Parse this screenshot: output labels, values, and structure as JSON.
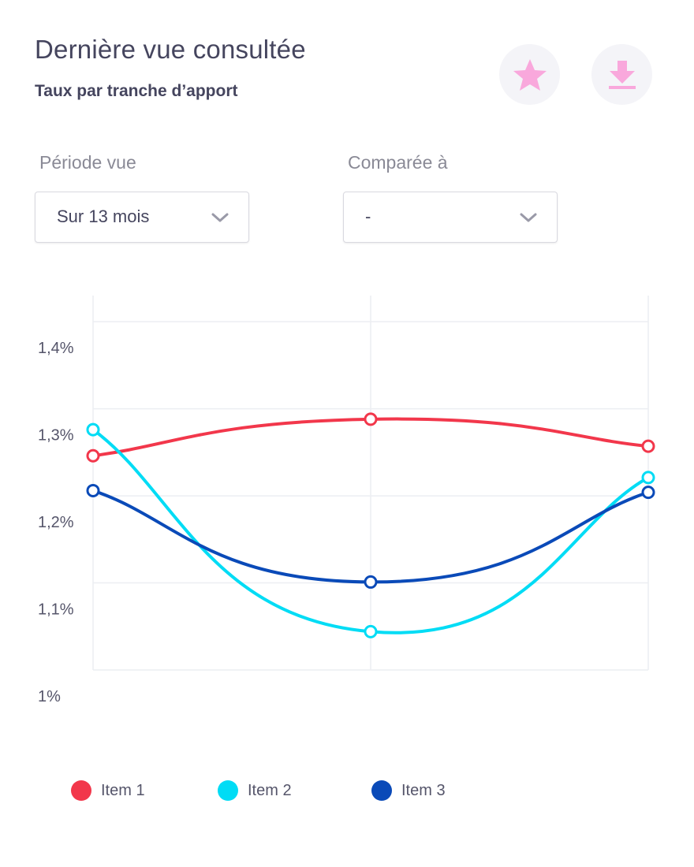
{
  "header": {
    "title": "Dernière vue consultée",
    "subtitle": "Taux par tranche d’apport",
    "favorite_icon": "star-icon",
    "download_icon": "download-icon"
  },
  "filters": {
    "period": {
      "label": "Période vue",
      "value": "Sur 13 mois"
    },
    "compare": {
      "label": "Comparée à",
      "value": "-"
    }
  },
  "colors": {
    "icon_accent": "#f9a8dc",
    "icon_bg": "#f4f4f8",
    "grid": "#eceef2"
  },
  "chart_data": {
    "type": "line",
    "title": "",
    "xlabel": "",
    "ylabel": "",
    "x": [
      1,
      2,
      3
    ],
    "ylim": [
      1.0,
      1.43
    ],
    "yticks": [
      1.0,
      1.1,
      1.2,
      1.3,
      1.4
    ],
    "ytick_labels": [
      "1%",
      "1,1%",
      "1,2%",
      "1,3%",
      "1,4%"
    ],
    "grid": true,
    "smooth": true,
    "legend_position": "bottom",
    "series": [
      {
        "name": "Item 1",
        "color": "#f2374b",
        "values": [
          1.246,
          1.288,
          1.257
        ]
      },
      {
        "name": "Item 2",
        "color": "#00dcf5",
        "values": [
          1.276,
          1.044,
          1.221
        ]
      },
      {
        "name": "Item 3",
        "color": "#0a4ab8",
        "values": [
          1.206,
          1.101,
          1.204
        ]
      }
    ]
  }
}
